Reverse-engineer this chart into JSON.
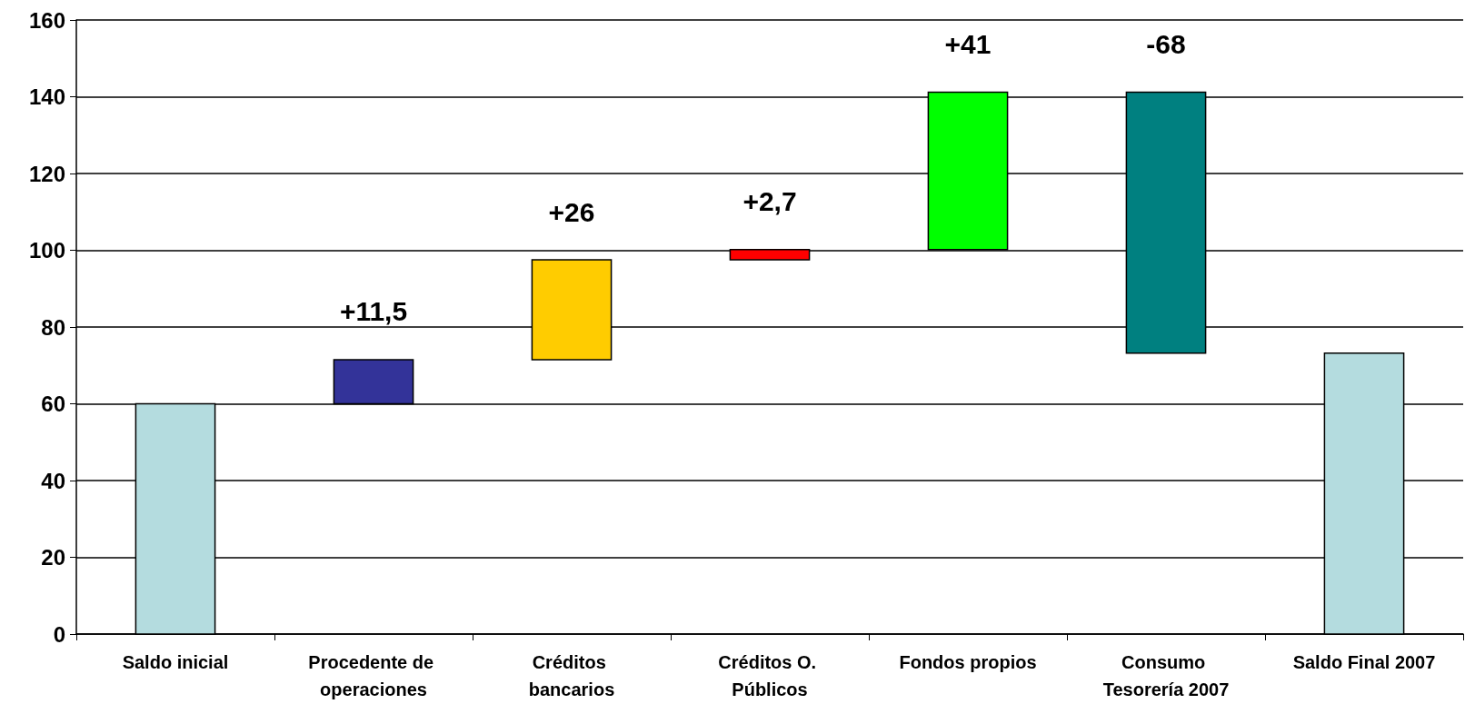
{
  "chart_data": {
    "type": "bar",
    "categories": [
      "Saldo inicial",
      "Procedente de operaciones",
      "Créditos bancarios",
      "Créditos O. Públicos",
      "Fondos propios",
      "Consumo Tesorería 2007",
      "Saldo Final 2007"
    ],
    "values": [
      60,
      11.5,
      26,
      2.7,
      41,
      -68,
      73.2
    ],
    "base": [
      0,
      60,
      71.5,
      97.5,
      100.2,
      141.2,
      0
    ],
    "colors": [
      "#b4dcdf",
      "#333399",
      "#ffcc00",
      "#ff0000",
      "#00ff00",
      "#008080",
      "#b4dcdf"
    ],
    "value_labels": [
      null,
      "+11,5",
      "+26",
      "+2,7",
      "+41",
      "-68",
      null
    ],
    "ylim": [
      0,
      160
    ],
    "yticks": [
      0,
      20,
      40,
      60,
      80,
      100,
      120,
      140,
      160
    ],
    "grid": "y"
  }
}
